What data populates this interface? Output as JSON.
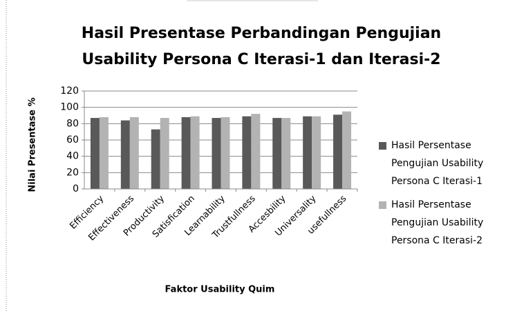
{
  "chart_data": {
    "type": "bar",
    "title": "Hasil Presentase Perbandingan Pengujian Usability Persona C Iterasi-1 dan Iterasi-2",
    "x_label": "Faktor Usability Quim",
    "y_label": "Nilai Presentase %",
    "categories": [
      "Efficiency",
      "Effectiveness",
      "Productivity",
      "Satisfication",
      "Learnability",
      "Trustfullness",
      "Accesbility",
      "Universality",
      "usefullness"
    ],
    "series": [
      {
        "name": "Hasil Persentase Pengujian Usability Persona C Iterasi-1",
        "color": "#595959",
        "values": [
          87,
          84,
          73,
          88,
          87,
          89,
          87,
          89,
          91
        ]
      },
      {
        "name": "Hasil Persentase Pengujian Usability Persona C Iterasi-2",
        "color": "#b3b3b3",
        "values": [
          88,
          88,
          87,
          89,
          88,
          92,
          87,
          89,
          95
        ]
      }
    ],
    "ylim": [
      0,
      120
    ],
    "yticks": [
      0,
      20,
      40,
      60,
      80,
      100,
      120
    ],
    "grid": true,
    "legend": "right"
  }
}
